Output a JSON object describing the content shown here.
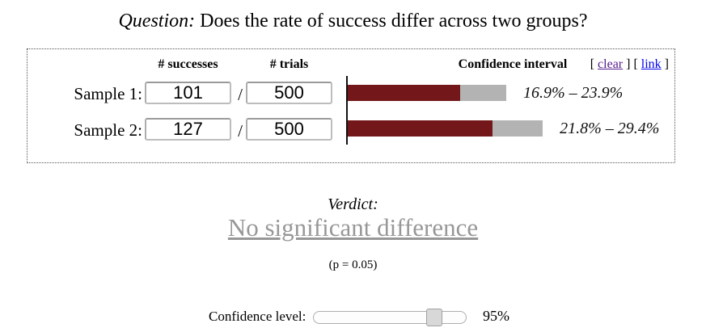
{
  "question": {
    "prefix": "Question:",
    "text": "Does the rate of success differ across two groups?"
  },
  "panel": {
    "headers": {
      "successes": "# successes",
      "trials": "# trials",
      "ci": "Confidence interval"
    },
    "links": {
      "clear": "clear",
      "link": "link"
    },
    "separator": "/",
    "samples": [
      {
        "label": "Sample 1:",
        "successes": "101",
        "trials": "500",
        "ci_text": "16.9% – 23.9%",
        "ci_low_pct": 16.9,
        "ci_high_pct": 23.9
      },
      {
        "label": "Sample 2:",
        "successes": "127",
        "trials": "500",
        "ci_text": "21.8% – 29.4%",
        "ci_low_pct": 21.8,
        "ci_high_pct": 29.4
      }
    ]
  },
  "verdict": {
    "heading": "Verdict:",
    "result": "No significant difference",
    "p_note": "(p = 0.05)"
  },
  "confidence": {
    "label": "Confidence level:",
    "value_text": "95%",
    "value": 95
  },
  "colors": {
    "bar_solid": "#73171a",
    "bar_range": "#b3b3b3",
    "verdict_text": "#979797",
    "clear_link": "#551a8b",
    "link_link": "#0000ee"
  },
  "chart_data": {
    "type": "bar",
    "orientation": "horizontal",
    "title": "Confidence interval",
    "categories": [
      "Sample 1",
      "Sample 2"
    ],
    "series": [
      {
        "name": "CI lower bound (%)",
        "values": [
          16.9,
          21.8
        ]
      },
      {
        "name": "CI upper bound (%)",
        "values": [
          23.9,
          29.4
        ]
      }
    ],
    "labels": [
      "16.9% – 23.9%",
      "21.8% – 29.4%"
    ],
    "xlim": [
      0,
      30
    ],
    "grid": false,
    "legend_position": "none"
  }
}
